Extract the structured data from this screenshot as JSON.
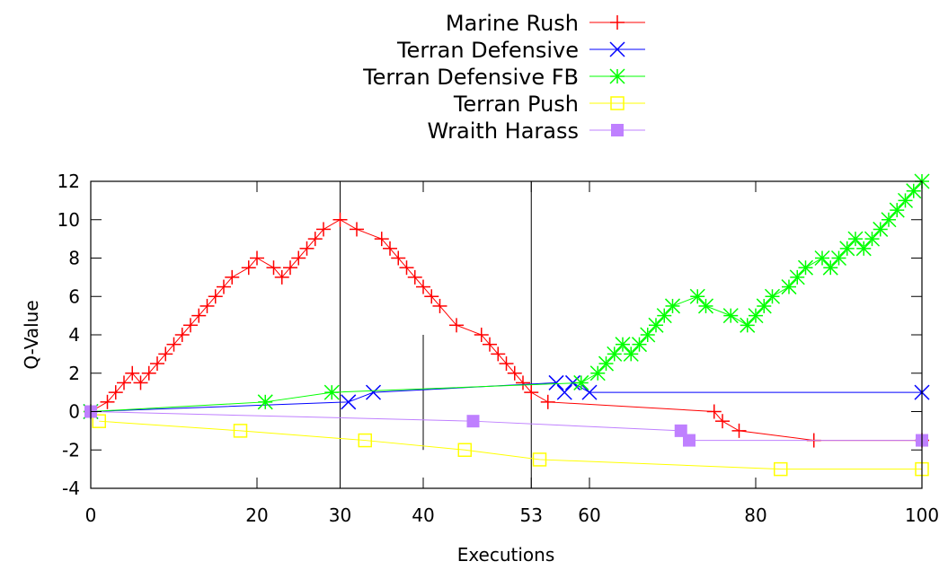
{
  "chart_data": {
    "type": "line",
    "title": "",
    "xlabel": "Executions",
    "ylabel": "Q-Value",
    "xlim": [
      0,
      100
    ],
    "ylim": [
      -4,
      12
    ],
    "xticks": [
      0,
      20,
      30,
      40,
      53,
      60,
      80,
      100
    ],
    "yticks": [
      -4,
      -2,
      0,
      2,
      4,
      6,
      8,
      10,
      12
    ],
    "grid": false,
    "legend_position": "top-center",
    "reference_lines": [
      {
        "x": 30,
        "y_from": -4,
        "y_to": 12
      },
      {
        "x": 40,
        "y_from": -2,
        "y_to": 4
      },
      {
        "x": 53,
        "y_from": -4,
        "y_to": 12
      }
    ],
    "series": [
      {
        "name": "Marine Rush",
        "color": "#ff0000",
        "marker": "plus",
        "x": [
          0,
          2,
          3,
          4,
          5,
          6,
          7,
          8,
          9,
          10,
          11,
          12,
          13,
          14,
          15,
          16,
          17,
          19,
          20,
          22,
          23,
          24,
          25,
          26,
          27,
          28,
          30,
          32,
          35,
          36,
          37,
          38,
          39,
          40,
          41,
          42,
          44,
          47,
          48,
          49,
          50,
          51,
          52,
          53,
          55,
          75,
          76,
          78,
          87,
          100
        ],
        "y": [
          0,
          0.5,
          1,
          1.5,
          2,
          1.5,
          2,
          2.5,
          3,
          3.5,
          4,
          4.5,
          5,
          5.5,
          6,
          6.5,
          7,
          7.5,
          8,
          7.5,
          7,
          7.5,
          8,
          8.5,
          9,
          9.5,
          10,
          9.5,
          9,
          8.5,
          8,
          7.5,
          7,
          6.5,
          6,
          5.5,
          4.5,
          4,
          3.5,
          3,
          2.5,
          2,
          1.5,
          1,
          0.5,
          0,
          -0.5,
          -1,
          -1.5,
          -1.5
        ]
      },
      {
        "name": "Terran Defensive",
        "color": "#0000ff",
        "marker": "cross",
        "x": [
          0,
          31,
          34,
          56,
          57,
          58,
          60,
          100
        ],
        "y": [
          0,
          0.5,
          1,
          1.5,
          1,
          1.5,
          1,
          1
        ]
      },
      {
        "name": "Terran Defensive FB",
        "color": "#00ff00",
        "marker": "star",
        "x": [
          0,
          21,
          29,
          59,
          61,
          62,
          63,
          64,
          65,
          66,
          67,
          68,
          69,
          70,
          73,
          74,
          77,
          79,
          80,
          81,
          82,
          84,
          85,
          86,
          88,
          89,
          90,
          91,
          92,
          93,
          94,
          95,
          96,
          97,
          98,
          99,
          100
        ],
        "y": [
          0,
          0.5,
          1,
          1.5,
          2,
          2.5,
          3,
          3.5,
          3,
          3.5,
          4,
          4.5,
          5,
          5.5,
          6,
          5.5,
          5,
          4.5,
          5,
          5.5,
          6,
          6.5,
          7,
          7.5,
          8,
          7.5,
          8,
          8.5,
          9,
          8.5,
          9,
          9.5,
          10,
          10.5,
          11,
          11.5,
          12
        ]
      },
      {
        "name": "Terran Push",
        "color": "#ffff00",
        "marker": "open-square",
        "x": [
          1,
          18,
          33,
          45,
          54,
          83,
          100
        ],
        "y": [
          -0.5,
          -1,
          -1.5,
          -2,
          -2.5,
          -3,
          -3
        ]
      },
      {
        "name": "Wraith Harass",
        "color": "#bf80ff",
        "marker": "filled-square",
        "x": [
          0,
          46,
          71,
          72,
          100
        ],
        "y": [
          0,
          -0.5,
          -1,
          -1.5,
          -1.5
        ]
      }
    ]
  }
}
